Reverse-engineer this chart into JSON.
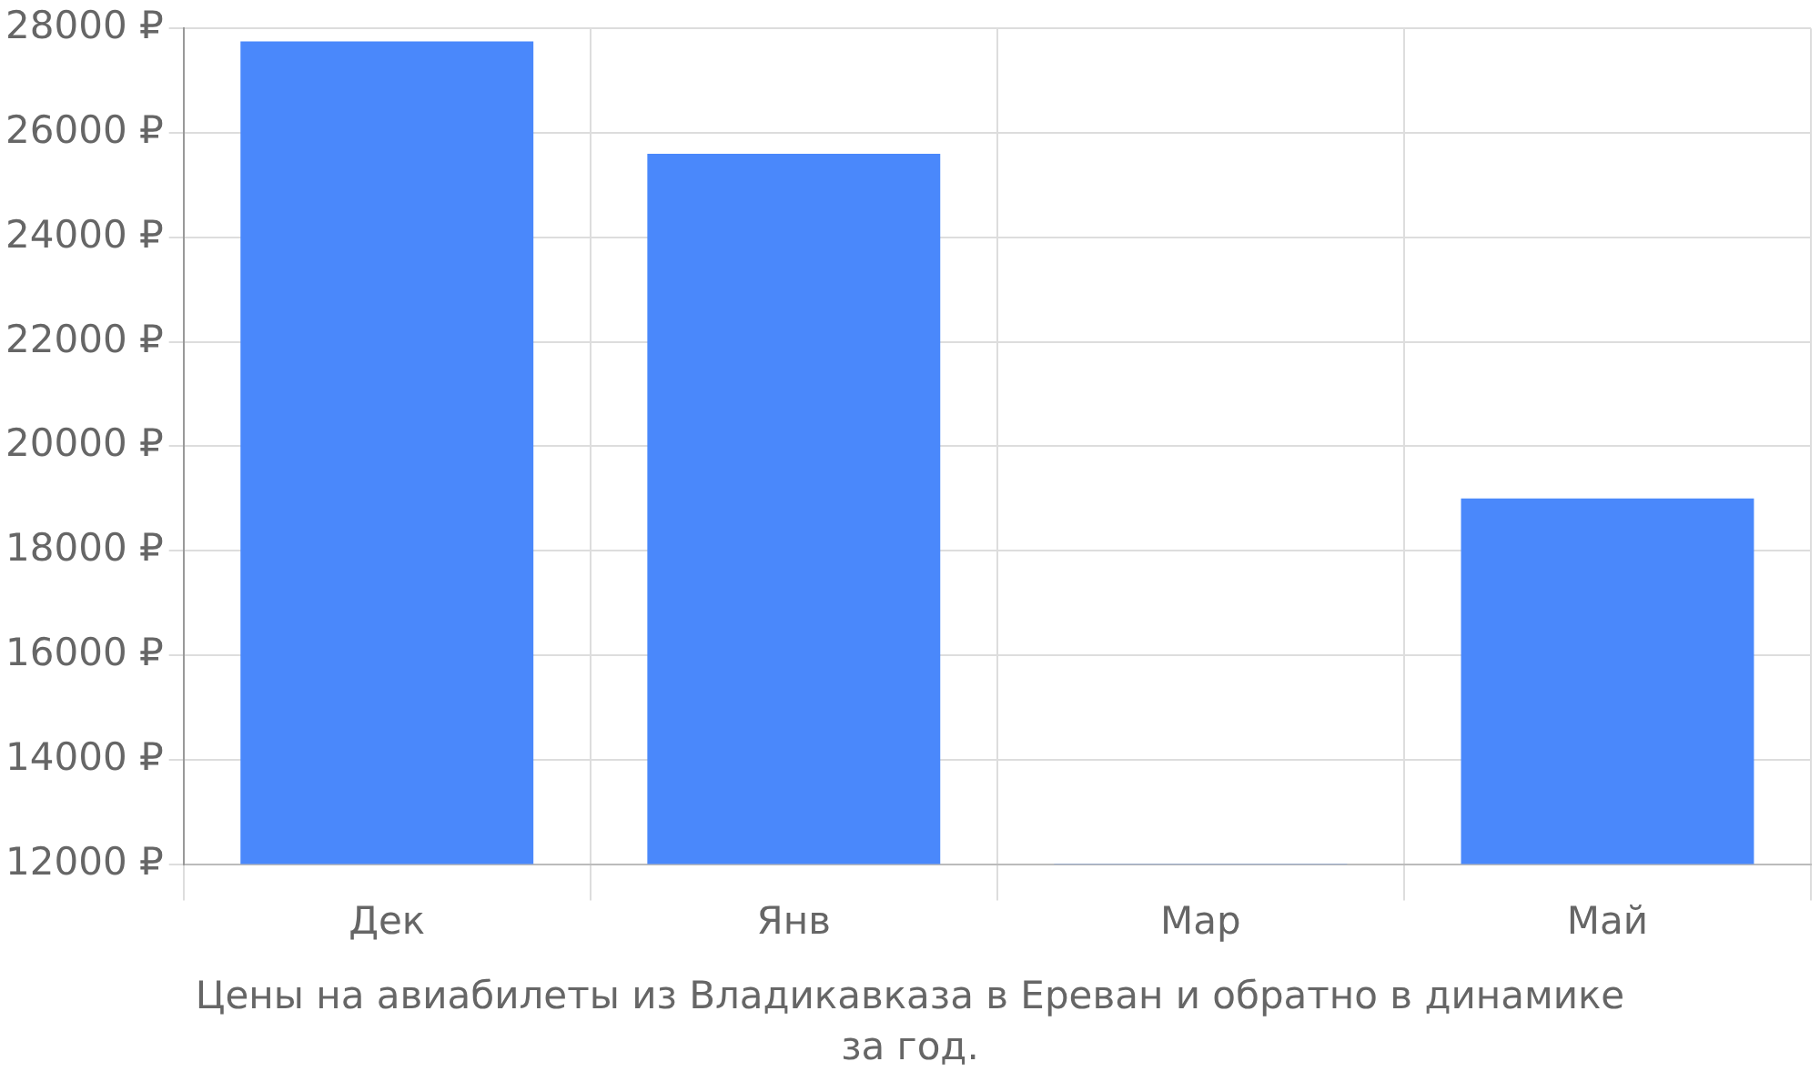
{
  "chart_data": {
    "type": "bar",
    "categories": [
      "Дек",
      "Янв",
      "Мар",
      "Май"
    ],
    "values": [
      27750,
      25600,
      12000,
      19000
    ],
    "color": "#4a88fb",
    "ylim": [
      12000,
      28000
    ],
    "yticks": [
      {
        "value": 12000,
        "label": "12000 ₽"
      },
      {
        "value": 14000,
        "label": "14000 ₽"
      },
      {
        "value": 16000,
        "label": "16000 ₽"
      },
      {
        "value": 18000,
        "label": "18000 ₽"
      },
      {
        "value": 20000,
        "label": "20000 ₽"
      },
      {
        "value": 22000,
        "label": "22000 ₽"
      },
      {
        "value": 24000,
        "label": "24000 ₽"
      },
      {
        "value": 26000,
        "label": "26000 ₽"
      },
      {
        "value": 28000,
        "label": "28000 ₽"
      }
    ],
    "grid": true,
    "legend": false,
    "annotations": [
      "Цены на авиабилеты из Владикавказа в Ереван и обратно в динамике за год."
    ]
  }
}
